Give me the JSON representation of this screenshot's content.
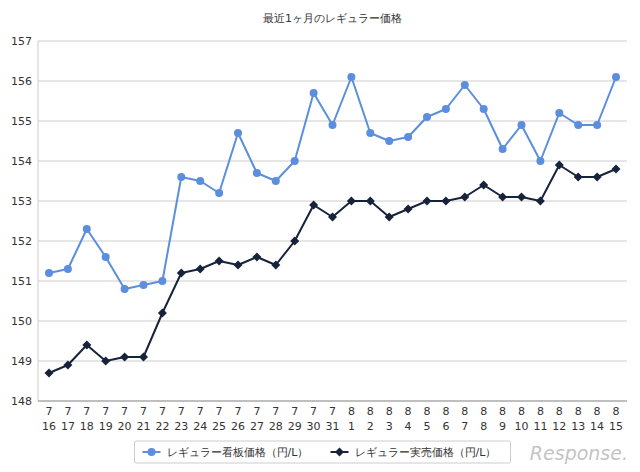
{
  "chart_data": {
    "type": "line",
    "title": "最近1ヶ月のレギュラー価格",
    "categories": [
      "7\n16",
      "7\n17",
      "7\n18",
      "7\n19",
      "7\n20",
      "7\n21",
      "7\n22",
      "7\n23",
      "7\n24",
      "7\n25",
      "7\n26",
      "7\n27",
      "7\n28",
      "7\n29",
      "7\n30",
      "7\n31",
      "8\n1",
      "8\n2",
      "8\n3",
      "8\n4",
      "8\n5",
      "8\n6",
      "8\n7",
      "8\n8",
      "8\n9",
      "8\n10",
      "8\n11",
      "8\n12",
      "8\n13",
      "8\n14",
      "8\n15"
    ],
    "series": [
      {
        "name": "レギュラー看板価格（円/L）",
        "color": "#5b8ede",
        "marker": "circle",
        "values": [
          151.2,
          151.3,
          152.3,
          151.6,
          150.8,
          150.9,
          151.0,
          153.6,
          153.5,
          153.2,
          154.7,
          153.7,
          153.5,
          154.0,
          155.7,
          154.9,
          156.1,
          154.7,
          154.5,
          154.6,
          155.1,
          155.3,
          155.9,
          155.3,
          154.3,
          154.9,
          154.0,
          155.2,
          154.9,
          154.9,
          156.1
        ]
      },
      {
        "name": "レギュラー実売価格（円/L）",
        "color": "#17223b",
        "marker": "diamond",
        "values": [
          148.7,
          148.9,
          149.4,
          149.0,
          149.1,
          149.1,
          150.2,
          151.2,
          151.3,
          151.5,
          151.4,
          151.6,
          151.4,
          152.0,
          152.9,
          152.6,
          153.0,
          153.0,
          152.6,
          152.8,
          153.0,
          153.0,
          153.1,
          153.4,
          153.1,
          153.1,
          153.0,
          153.9,
          153.6,
          153.6,
          153.8
        ]
      }
    ],
    "ylim": [
      148,
      157
    ],
    "yticks": [
      148,
      149,
      150,
      151,
      152,
      153,
      154,
      155,
      156,
      157
    ],
    "grid": true,
    "legend": "bottom",
    "watermark": "Response."
  }
}
